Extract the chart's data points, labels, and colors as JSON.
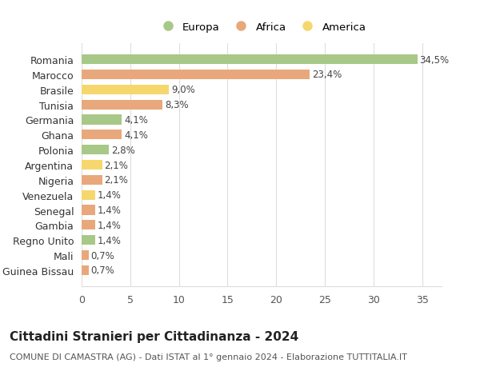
{
  "categories": [
    "Guinea Bissau",
    "Mali",
    "Regno Unito",
    "Gambia",
    "Senegal",
    "Venezuela",
    "Nigeria",
    "Argentina",
    "Polonia",
    "Ghana",
    "Germania",
    "Tunisia",
    "Brasile",
    "Marocco",
    "Romania"
  ],
  "values": [
    0.7,
    0.7,
    1.4,
    1.4,
    1.4,
    1.4,
    2.1,
    2.1,
    2.8,
    4.1,
    4.1,
    8.3,
    9.0,
    23.4,
    34.5
  ],
  "labels": [
    "0,7%",
    "0,7%",
    "1,4%",
    "1,4%",
    "1,4%",
    "1,4%",
    "2,1%",
    "2,1%",
    "2,8%",
    "4,1%",
    "4,1%",
    "8,3%",
    "9,0%",
    "23,4%",
    "34,5%"
  ],
  "colors": [
    "#e8a87c",
    "#e8a87c",
    "#a8c888",
    "#e8a87c",
    "#e8a87c",
    "#f5d76e",
    "#e8a87c",
    "#f5d76e",
    "#a8c888",
    "#e8a87c",
    "#a8c888",
    "#e8a87c",
    "#f5d76e",
    "#e8a87c",
    "#a8c888"
  ],
  "legend_labels": [
    "Europa",
    "Africa",
    "America"
  ],
  "legend_colors": [
    "#a8c888",
    "#e8a87c",
    "#f5d76e"
  ],
  "title": "Cittadini Stranieri per Cittadinanza - 2024",
  "subtitle": "COMUNE DI CAMASTRA (AG) - Dati ISTAT al 1° gennaio 2024 - Elaborazione TUTTITALIA.IT",
  "xlim": [
    0,
    37
  ],
  "xticks": [
    0,
    5,
    10,
    15,
    20,
    25,
    30,
    35
  ],
  "background_color": "#ffffff",
  "grid_color": "#dddddd",
  "bar_height": 0.65,
  "title_fontsize": 11,
  "subtitle_fontsize": 8,
  "tick_fontsize": 9,
  "label_fontsize": 8.5,
  "label_color": "#444444"
}
